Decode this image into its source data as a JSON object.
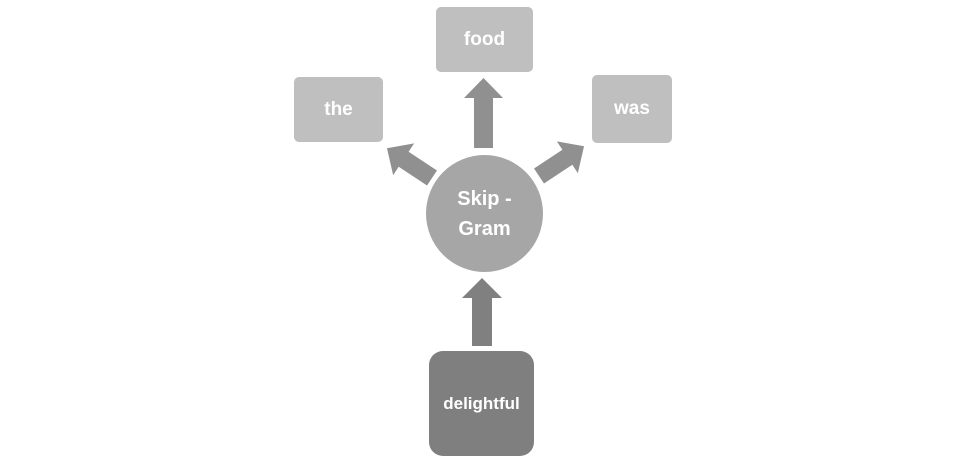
{
  "diagram": {
    "center": {
      "line1": "Skip -",
      "line2": "Gram"
    },
    "input": {
      "label": "delightful"
    },
    "outputs": {
      "left": "the",
      "top": "food",
      "right": "was"
    }
  },
  "colors": {
    "output_box": "#bfbfbf",
    "center_circle": "#a6a6a6",
    "input_box": "#7f7f7f",
    "arrow": "#909090",
    "arrow_dark": "#808080",
    "text": "#ffffff"
  }
}
